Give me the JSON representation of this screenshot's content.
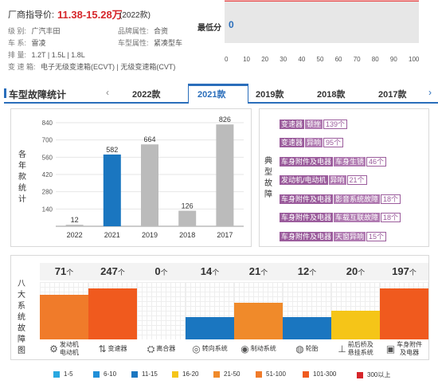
{
  "info": {
    "price_label": "厂商指导价:",
    "price_value": "11.38-15.28万",
    "price_year": "(2022款)",
    "rows": [
      {
        "k1": "级      别:",
        "v1": "广汽丰田",
        "k2": "品牌属性:",
        "v2": "合资"
      },
      {
        "k1": "车      系:",
        "v1": "雷凌",
        "k2": "车型属性:",
        "v2": "紧凑型车"
      },
      {
        "k1": "排      量:",
        "v1": "1.2T | 1.5L | 1.8L",
        "k2": "",
        "v2": ""
      },
      {
        "k1": "变 速 箱:",
        "v1": "电子无级变速箱(ECVT) | 无级变速箱(CVT)",
        "k2": "",
        "v2": ""
      }
    ]
  },
  "score": {
    "label": "最低分",
    "value": "0",
    "ticks": [
      "0",
      "10",
      "20",
      "30",
      "40",
      "50",
      "60",
      "70",
      "80",
      "90",
      "100"
    ],
    "bar_color": "#e7e7e7"
  },
  "section": {
    "title": "车型故障统计",
    "tabs": [
      "2022款",
      "2021款",
      "2019款",
      "2018款",
      "2017款"
    ],
    "active_tab": "2021款",
    "prev_icon": "chevron-left-icon",
    "next_icon": "chevron-right-icon"
  },
  "yearly_label": "各年款统计",
  "chart_data": {
    "type": "bar",
    "categories": [
      "2022",
      "2021",
      "2019",
      "2018",
      "2017"
    ],
    "values": [
      12,
      582,
      664,
      126,
      826
    ],
    "yticks": [
      140,
      280,
      420,
      560,
      700,
      840
    ],
    "ylim": [
      0,
      840
    ],
    "highlight": "2021",
    "colors": {
      "highlight": "#1a76c0",
      "normal": "#bbbbbb"
    }
  },
  "typical_label": "典型故障",
  "typical_faults": [
    {
      "category": "变速器",
      "issue": "顿挫",
      "count": "139个"
    },
    {
      "category": "变速器",
      "issue": "异响",
      "count": "95个"
    },
    {
      "category": "车身附件及电器",
      "issue": "车身生锈",
      "count": "46个"
    },
    {
      "category": "发动机/电动机",
      "issue": "异响",
      "count": "21个"
    },
    {
      "category": "车身附件及电器",
      "issue": "影音系统故障",
      "count": "18个"
    },
    {
      "category": "车身附件及电器",
      "issue": "车载互联故障",
      "count": "18个"
    },
    {
      "category": "车身附件及电器",
      "issue": "天窗异响",
      "count": "15个"
    }
  ],
  "systems_label": "八大系统故障图",
  "systems": [
    {
      "count": "71",
      "unit": "个",
      "name": "发动机\n电动机",
      "icon": "engine-icon",
      "glyph": "⚙",
      "level": "51-100",
      "color": "#f07b2a"
    },
    {
      "count": "247",
      "unit": "个",
      "name": "变速器",
      "icon": "gearshift-icon",
      "glyph": "⇅",
      "level": "101-300",
      "color": "#f05a1e"
    },
    {
      "count": "0",
      "unit": "个",
      "name": "离合器",
      "icon": "clutch-icon",
      "glyph": "⛭",
      "level": "",
      "color": ""
    },
    {
      "count": "14",
      "unit": "个",
      "name": "转向系统",
      "icon": "steering-wheel-icon",
      "glyph": "◎",
      "level": "11-15",
      "color": "#1a76c0"
    },
    {
      "count": "21",
      "unit": "个",
      "name": "制动系统",
      "icon": "brake-icon",
      "glyph": "◉",
      "level": "21-50",
      "color": "#f08a2a"
    },
    {
      "count": "12",
      "unit": "个",
      "name": "轮胎",
      "icon": "tire-icon",
      "glyph": "◍",
      "level": "11-15",
      "color": "#1a76c0"
    },
    {
      "count": "20",
      "unit": "个",
      "name": "前后桥及\n悬挂系统",
      "icon": "suspension-icon",
      "glyph": "⊥",
      "level": "16-20",
      "color": "#f5c518"
    },
    {
      "count": "197",
      "unit": "个",
      "name": "车身附件\n及电器",
      "icon": "car-body-icon",
      "glyph": "▣",
      "level": "101-300",
      "color": "#f05a1e"
    }
  ],
  "legend": [
    {
      "label": "1-5",
      "color": "#29a8e0"
    },
    {
      "label": "6-10",
      "color": "#1f8fd8"
    },
    {
      "label": "11-15",
      "color": "#1a76c0"
    },
    {
      "label": "16-20",
      "color": "#f5c518"
    },
    {
      "label": "21-50",
      "color": "#f08a2a"
    },
    {
      "label": "51-100",
      "color": "#f07b2a"
    },
    {
      "label": "101-300",
      "color": "#f05a1e"
    },
    {
      "label": "300以上",
      "color": "#d6262b"
    }
  ]
}
